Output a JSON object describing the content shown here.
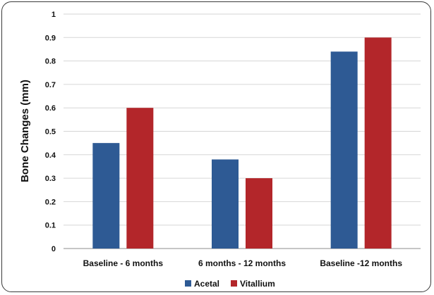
{
  "chart_data": {
    "type": "bar",
    "title": "",
    "xlabel": "",
    "ylabel": "Bone Changes (mm)",
    "ylim": [
      0,
      1
    ],
    "yticks": [
      "0",
      "0.1",
      "0.2",
      "0.3",
      "0.4",
      "0.5",
      "0.6",
      "0.7",
      "0.8",
      "0.9",
      "1"
    ],
    "grid": true,
    "legend_position": "bottom",
    "categories": [
      "Baseline - 6 months",
      "6 months - 12 months",
      "Baseline -12 months"
    ],
    "series": [
      {
        "name": "Acetal",
        "color": "#2e5a94",
        "values": [
          0.45,
          0.38,
          0.84
        ]
      },
      {
        "name": "Vitallium",
        "color": "#b3262a",
        "values": [
          0.6,
          0.3,
          0.9
        ]
      }
    ]
  }
}
